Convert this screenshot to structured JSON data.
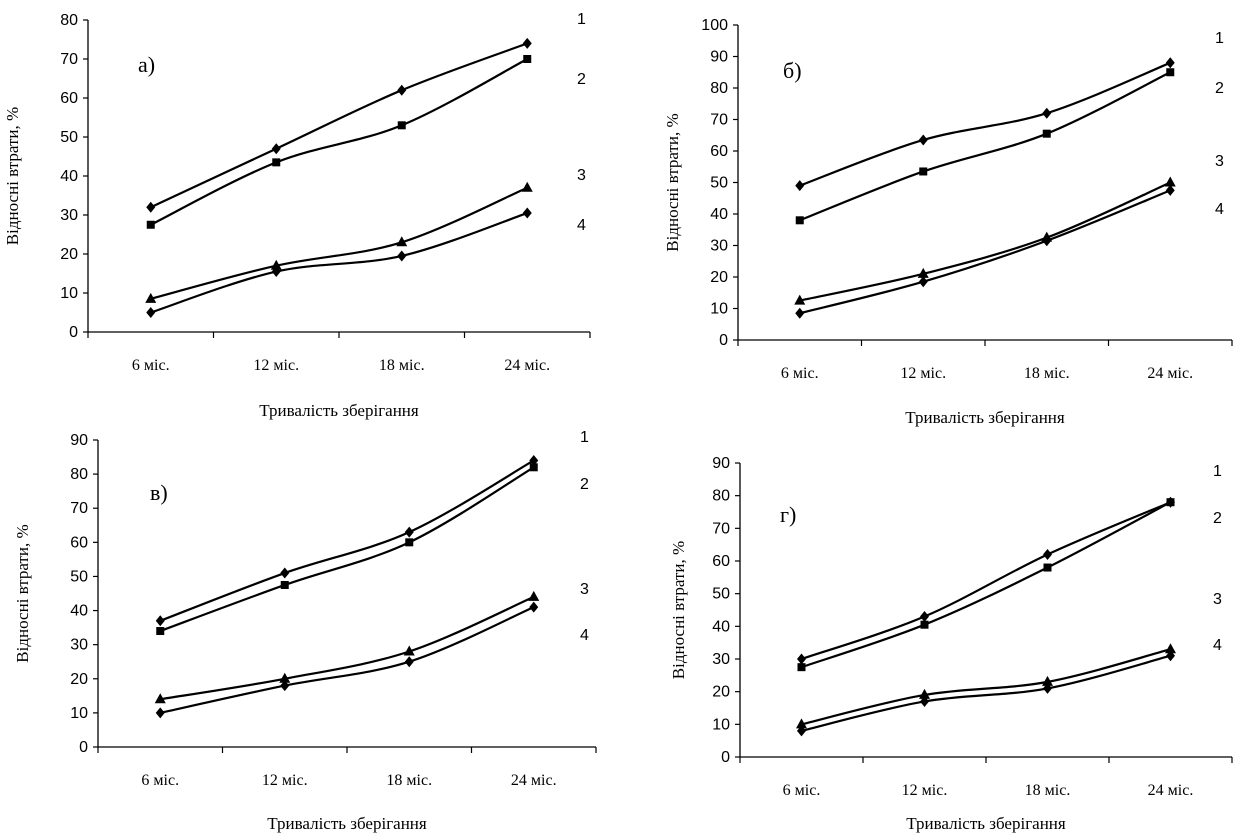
{
  "chart_data": [
    {
      "type": "line",
      "panel_label": "а)",
      "categories": [
        "6 міс.",
        "12 міс.",
        "18 міс.",
        "24 міс."
      ],
      "xlabel": "Тривалість зберігання",
      "ylabel": "Відносні втрати, %",
      "ylim": [
        0,
        80
      ],
      "ytick_step": 10,
      "series": [
        {
          "name": "1",
          "marker": "diamond",
          "values": [
            32,
            47,
            62,
            74
          ]
        },
        {
          "name": "2",
          "marker": "square",
          "values": [
            27.5,
            43.5,
            53,
            70
          ]
        },
        {
          "name": "3",
          "marker": "triangle",
          "values": [
            8.5,
            17,
            23,
            37
          ]
        },
        {
          "name": "4",
          "marker": "diamond",
          "values": [
            5,
            15.5,
            19.5,
            30.5
          ]
        }
      ]
    },
    {
      "type": "line",
      "panel_label": "б)",
      "categories": [
        "6 міс.",
        "12 міс.",
        "18 міс.",
        "24 міс."
      ],
      "xlabel": "Тривалість зберігання",
      "ylabel": "Відносні втрати, %",
      "ylim": [
        0,
        100
      ],
      "ytick_step": 10,
      "series": [
        {
          "name": "1",
          "marker": "diamond",
          "values": [
            49,
            63.5,
            72,
            88
          ]
        },
        {
          "name": "2",
          "marker": "square",
          "values": [
            38,
            53.5,
            65.5,
            85
          ]
        },
        {
          "name": "3",
          "marker": "triangle",
          "values": [
            12.5,
            21,
            32.5,
            50
          ]
        },
        {
          "name": "4",
          "marker": "diamond",
          "values": [
            8.5,
            18.5,
            31.5,
            47.5
          ]
        }
      ]
    },
    {
      "type": "line",
      "panel_label": "в)",
      "categories": [
        "6 міс.",
        "12 міс.",
        "18 міс.",
        "24 міс."
      ],
      "xlabel": "Тривалість зберігання",
      "ylabel": "Відносні втрати, %",
      "ylim": [
        0,
        90
      ],
      "ytick_step": 10,
      "series": [
        {
          "name": "1",
          "marker": "diamond",
          "values": [
            37,
            51,
            63,
            84
          ]
        },
        {
          "name": "2",
          "marker": "square",
          "values": [
            34,
            47.5,
            60,
            82
          ]
        },
        {
          "name": "3",
          "marker": "triangle",
          "values": [
            14,
            20,
            28,
            44
          ]
        },
        {
          "name": "4",
          "marker": "diamond",
          "values": [
            10,
            18,
            25,
            41
          ]
        }
      ]
    },
    {
      "type": "line",
      "panel_label": "г)",
      "categories": [
        "6 міс.",
        "12 міс.",
        "18 міс.",
        "24 міс."
      ],
      "xlabel": "Тривалість зберігання",
      "ylabel": "Відносні втрати, %",
      "ylim": [
        0,
        90
      ],
      "ytick_step": 10,
      "series": [
        {
          "name": "1",
          "marker": "diamond",
          "values": [
            30,
            43,
            62,
            78
          ]
        },
        {
          "name": "2",
          "marker": "square",
          "values": [
            27.5,
            40.5,
            58,
            78
          ]
        },
        {
          "name": "3",
          "marker": "triangle",
          "values": [
            10,
            19,
            23,
            33
          ]
        },
        {
          "name": "4",
          "marker": "diamond",
          "values": [
            8,
            17,
            21,
            31
          ]
        }
      ]
    }
  ]
}
